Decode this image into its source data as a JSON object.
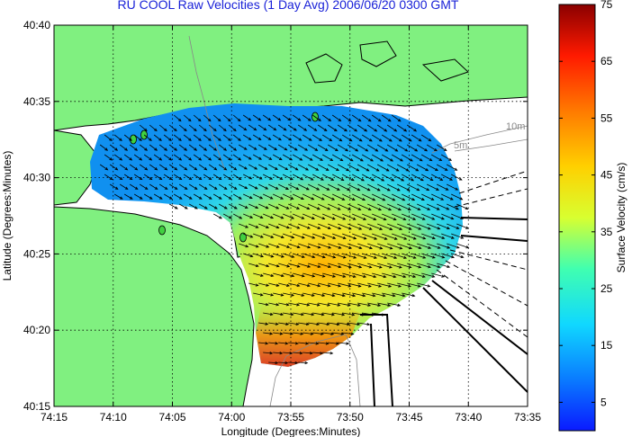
{
  "title": "RU COOL Raw Velocities (1 Day Avg) 2006/06/20 0300 GMT",
  "chart_data": {
    "type": "heatmap",
    "xlabel": "Longitude (Degrees:Minutes)",
    "ylabel": "Latitude (Degrees:Minutes)",
    "x_ticks": [
      "74:15",
      "74:10",
      "74:05",
      "74:00",
      "73:55",
      "73:50",
      "73:45",
      "73:40",
      "73:35"
    ],
    "y_ticks": [
      "40:40",
      "40:35",
      "40:30",
      "40:25",
      "40:20",
      "40:15"
    ],
    "colorbar": {
      "label": "Surface Velocity (cm/s)",
      "ticks": [
        75,
        65,
        55,
        45,
        35,
        25,
        15,
        5
      ],
      "range": [
        0,
        75
      ],
      "colormap": "jet"
    },
    "grid": true,
    "contour_labels": [
      "10m",
      "5m"
    ],
    "colors": {
      "land": "#80f080",
      "title": "#1a22d8"
    }
  }
}
